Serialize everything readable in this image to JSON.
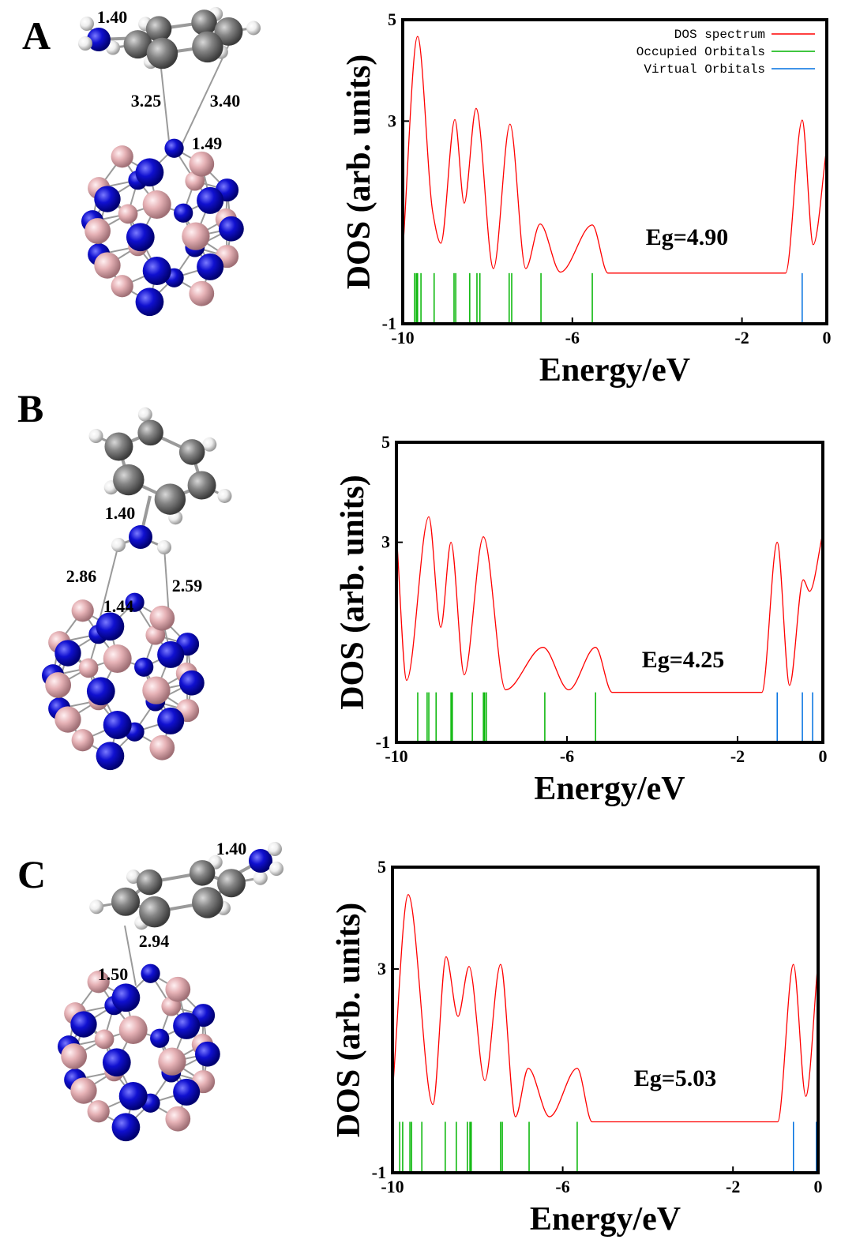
{
  "chart_data": [
    {
      "type": "line",
      "label": "A",
      "bond_labels": [
        "1.40",
        "3.25",
        "3.40",
        "1.49"
      ],
      "xlabel": "Energy/eV",
      "ylabel": "DOS (arb. units)",
      "annotation": "Eg=4.90",
      "xlim": [
        -10,
        0
      ],
      "ylim": [
        -1,
        5
      ],
      "xticks": [
        -10,
        -6,
        -2,
        0
      ],
      "yticks": [
        -1,
        3,
        5
      ],
      "legend": "upper right",
      "series": [
        {
          "name": "DOS spectrum",
          "color": "#ff0000",
          "style": "line",
          "x": [
            -10,
            -9.65,
            -9.29,
            -9.1,
            -8.77,
            -8.55,
            -8.27,
            -7.86,
            -7.47,
            -7.1,
            -6.76,
            -6.28,
            -5.53,
            -5.16,
            -0.97,
            -0.58,
            -0.32,
            0
          ],
          "values": [
            0.41,
            4.67,
            1.19,
            0.59,
            3.03,
            1.38,
            3.25,
            0.09,
            2.94,
            0.09,
            0.97,
            0.02,
            0.95,
            0,
            0,
            3.02,
            0.56,
            2.5
          ]
        },
        {
          "name": "Occupied Orbitals",
          "color": "#00b400",
          "style": "sticks",
          "x": [
            -9.72,
            -9.68,
            -9.65,
            -9.57,
            -9.26,
            -8.79,
            -8.75,
            -8.42,
            -8.25,
            -8.18,
            -7.49,
            -7.43,
            -6.74,
            -5.53
          ]
        },
        {
          "name": "Virtual Orbitals",
          "color": "#0070e0",
          "style": "sticks",
          "x": [
            -0.58
          ]
        }
      ]
    },
    {
      "type": "line",
      "label": "B",
      "bond_labels": [
        "1.40",
        "2.86",
        "2.59",
        "1.44"
      ],
      "xlabel": "Energy/eV",
      "ylabel": "DOS (arb. units)",
      "annotation": "Eg=4.25",
      "xlim": [
        -10,
        0
      ],
      "ylim": [
        -1,
        5
      ],
      "xticks": [
        -10,
        -6,
        -2,
        0
      ],
      "yticks": [
        -1,
        3,
        5
      ],
      "series": [
        {
          "color": "#ff0000",
          "style": "line",
          "x": [
            -10,
            -9.76,
            -9.24,
            -8.96,
            -8.72,
            -8.41,
            -7.96,
            -7.44,
            -6.56,
            -5.96,
            -5.33,
            -4.94,
            -1.43,
            -1.07,
            -0.78,
            -0.46,
            -0.31,
            0
          ],
          "values": [
            3.2,
            0.24,
            3.51,
            1.3,
            3.0,
            0.35,
            3.11,
            0.05,
            0.9,
            0.05,
            0.9,
            0,
            0,
            3.0,
            0.14,
            2.25,
            2.02,
            3.19
          ]
        },
        {
          "color": "#00b400",
          "style": "sticks",
          "x": [
            -9.5,
            -9.28,
            -9.24,
            -9.07,
            -8.72,
            -8.69,
            -8.22,
            -7.96,
            -7.93,
            -7.89,
            -6.52,
            -5.33
          ]
        },
        {
          "color": "#0070e0",
          "style": "sticks",
          "x": [
            -1.07,
            -0.48,
            -0.24
          ]
        }
      ]
    },
    {
      "type": "line",
      "label": "C",
      "bond_labels": [
        "1.40",
        "2.94",
        "1.50"
      ],
      "xlabel": "Energy/eV",
      "ylabel": "DOS (arb. units)",
      "annotation": "Eg=5.03",
      "xlim": [
        -10,
        0
      ],
      "ylim": [
        -1,
        5
      ],
      "xticks": [
        -10,
        -6,
        -2,
        0
      ],
      "yticks": [
        -1,
        3,
        5
      ],
      "series": [
        {
          "color": "#ff0000",
          "style": "line",
          "x": [
            -10,
            -9.63,
            -9.05,
            -8.74,
            -8.46,
            -8.2,
            -7.83,
            -7.46,
            -7.11,
            -6.81,
            -6.31,
            -5.66,
            -5.31,
            -0.95,
            -0.58,
            -0.29,
            0
          ],
          "values": [
            0.57,
            4.46,
            0.34,
            3.24,
            2.07,
            3.05,
            0.81,
            3.09,
            0.1,
            1.05,
            0.1,
            1.05,
            0,
            0,
            3.09,
            0.5,
            3.17
          ]
        },
        {
          "color": "#00b400",
          "style": "sticks",
          "x": [
            -9.83,
            -9.76,
            -9.59,
            -9.55,
            -9.31,
            -8.76,
            -8.5,
            -8.24,
            -8.18,
            -8.15,
            -7.46,
            -7.42,
            -6.79,
            -5.66
          ]
        },
        {
          "color": "#0070e0",
          "style": "sticks",
          "x": [
            -0.58,
            -0.04
          ]
        }
      ]
    }
  ]
}
